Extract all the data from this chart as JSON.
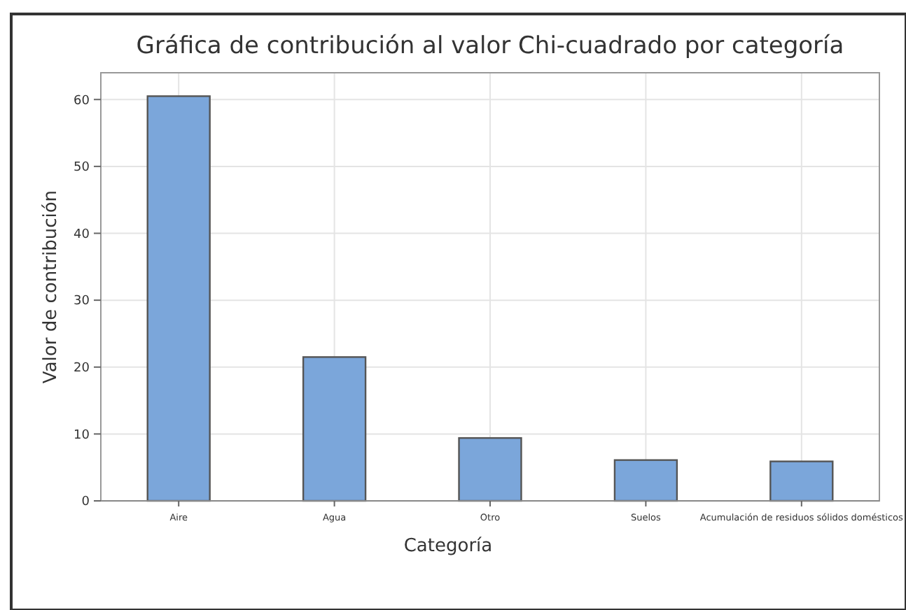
{
  "chart_data": {
    "type": "bar",
    "title": "Gráfica de contribución al valor Chi-cuadrado por categoría",
    "xlabel": "Categoría",
    "ylabel": "Valor de contribución",
    "categories": [
      "Aire",
      "Agua",
      "Otro",
      "Suelos",
      "Acumulación de residuos sólidos domésticos"
    ],
    "values": [
      60.5,
      21.5,
      9.4,
      6.1,
      5.9
    ],
    "color": "#7ba6da",
    "ylim": [
      0,
      64
    ],
    "yticks": [
      0,
      10,
      20,
      30,
      40,
      50,
      60
    ],
    "grid": true
  }
}
